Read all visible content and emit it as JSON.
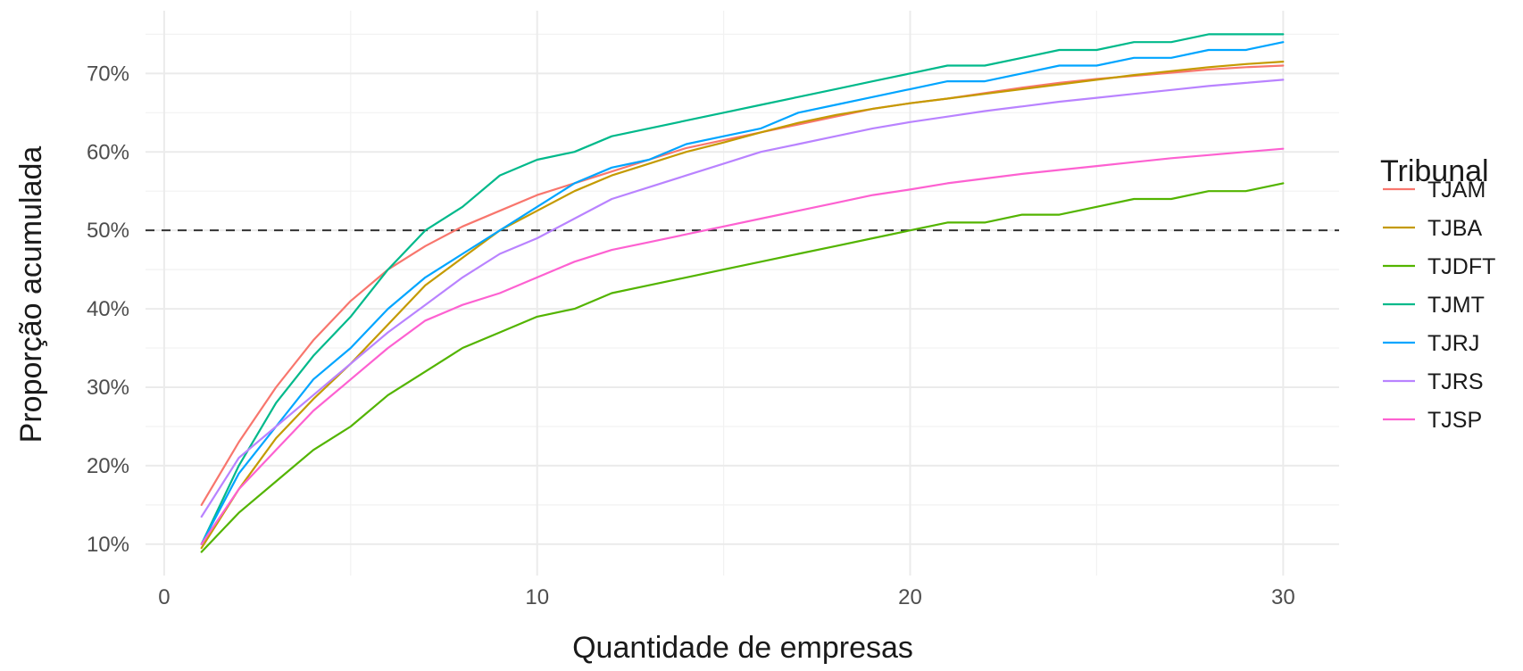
{
  "chart_data": {
    "type": "line",
    "title": "",
    "xlabel": "Quantidade de empresas",
    "ylabel": "Proporção acumulada",
    "xlim": [
      -0.5,
      31.5
    ],
    "ylim": [
      0.06,
      0.78
    ],
    "x_ticks": [
      0,
      10,
      20,
      30
    ],
    "x_tick_labels": [
      "0",
      "10",
      "20",
      "30"
    ],
    "y_ticks": [
      0.1,
      0.2,
      0.3,
      0.4,
      0.5,
      0.6,
      0.7
    ],
    "y_tick_labels": [
      "10%",
      "20%",
      "30%",
      "40%",
      "50%",
      "60%",
      "70%"
    ],
    "grid": true,
    "reference_line": {
      "y": 0.5,
      "style": "dashed",
      "color": "#333333"
    },
    "legend": {
      "title": "Tribunal",
      "position": "right"
    },
    "series": [
      {
        "name": "TJAM",
        "color": "#F8766D",
        "x": [
          1,
          2,
          3,
          4,
          5,
          6,
          7,
          8,
          9,
          10,
          11,
          12,
          13,
          14,
          15,
          16,
          17,
          18,
          19,
          20,
          21,
          22,
          23,
          24,
          25,
          26,
          27,
          28,
          29,
          30
        ],
        "values": [
          0.15,
          0.23,
          0.3,
          0.36,
          0.41,
          0.45,
          0.48,
          0.505,
          0.525,
          0.545,
          0.56,
          0.575,
          0.59,
          0.605,
          0.615,
          0.625,
          0.635,
          0.645,
          0.655,
          0.662,
          0.668,
          0.675,
          0.682,
          0.688,
          0.693,
          0.697,
          0.701,
          0.705,
          0.708,
          0.71
        ]
      },
      {
        "name": "TJBA",
        "color": "#C49A00",
        "x": [
          1,
          2,
          3,
          4,
          5,
          6,
          7,
          8,
          9,
          10,
          11,
          12,
          13,
          14,
          15,
          16,
          17,
          18,
          19,
          20,
          21,
          22,
          23,
          24,
          25,
          26,
          27,
          28,
          29,
          30
        ],
        "values": [
          0.095,
          0.17,
          0.235,
          0.285,
          0.33,
          0.38,
          0.43,
          0.465,
          0.5,
          0.525,
          0.55,
          0.57,
          0.585,
          0.6,
          0.612,
          0.625,
          0.637,
          0.647,
          0.655,
          0.662,
          0.668,
          0.674,
          0.68,
          0.686,
          0.692,
          0.698,
          0.703,
          0.708,
          0.712,
          0.715
        ]
      },
      {
        "name": "TJDFT",
        "color": "#53B400",
        "x": [
          1,
          2,
          3,
          4,
          5,
          6,
          7,
          8,
          9,
          10,
          11,
          12,
          13,
          14,
          15,
          16,
          17,
          18,
          19,
          20,
          21,
          22,
          23,
          24,
          25,
          26,
          27,
          28,
          29,
          30
        ],
        "values": [
          0.09,
          0.14,
          0.18,
          0.22,
          0.25,
          0.29,
          0.32,
          0.35,
          0.37,
          0.39,
          0.4,
          0.42,
          0.43,
          0.44,
          0.45,
          0.46,
          0.47,
          0.48,
          0.49,
          0.5,
          0.51,
          0.51,
          0.52,
          0.52,
          0.53,
          0.54,
          0.54,
          0.55,
          0.55,
          0.56
        ]
      },
      {
        "name": "TJMT",
        "color": "#00B98B",
        "x": [
          1,
          2,
          3,
          4,
          5,
          6,
          7,
          8,
          9,
          10,
          11,
          12,
          13,
          14,
          15,
          16,
          17,
          18,
          19,
          20,
          21,
          22,
          23,
          24,
          25,
          26,
          27,
          28,
          29,
          30
        ],
        "values": [
          0.1,
          0.2,
          0.28,
          0.34,
          0.39,
          0.45,
          0.5,
          0.53,
          0.57,
          0.59,
          0.6,
          0.62,
          0.63,
          0.64,
          0.65,
          0.66,
          0.67,
          0.68,
          0.69,
          0.7,
          0.71,
          0.71,
          0.72,
          0.73,
          0.73,
          0.74,
          0.74,
          0.75,
          0.75,
          0.75
        ]
      },
      {
        "name": "TJRJ",
        "color": "#00A5FF",
        "x": [
          1,
          2,
          3,
          4,
          5,
          6,
          7,
          8,
          9,
          10,
          11,
          12,
          13,
          14,
          15,
          16,
          17,
          18,
          19,
          20,
          21,
          22,
          23,
          24,
          25,
          26,
          27,
          28,
          29,
          30
        ],
        "values": [
          0.1,
          0.19,
          0.25,
          0.31,
          0.35,
          0.4,
          0.44,
          0.47,
          0.5,
          0.53,
          0.56,
          0.58,
          0.59,
          0.61,
          0.62,
          0.63,
          0.65,
          0.66,
          0.67,
          0.68,
          0.69,
          0.69,
          0.7,
          0.71,
          0.71,
          0.72,
          0.72,
          0.73,
          0.73,
          0.74
        ]
      },
      {
        "name": "TJRS",
        "color": "#B983FF",
        "x": [
          1,
          2,
          3,
          4,
          5,
          6,
          7,
          8,
          9,
          10,
          11,
          12,
          13,
          14,
          15,
          16,
          17,
          18,
          19,
          20,
          21,
          22,
          23,
          24,
          25,
          26,
          27,
          28,
          29,
          30
        ],
        "values": [
          0.135,
          0.21,
          0.25,
          0.29,
          0.33,
          0.37,
          0.405,
          0.44,
          0.47,
          0.49,
          0.515,
          0.54,
          0.555,
          0.57,
          0.585,
          0.6,
          0.61,
          0.62,
          0.63,
          0.638,
          0.645,
          0.652,
          0.658,
          0.664,
          0.669,
          0.674,
          0.679,
          0.684,
          0.688,
          0.692
        ]
      },
      {
        "name": "TJSP",
        "color": "#FD61D1",
        "x": [
          1,
          2,
          3,
          4,
          5,
          6,
          7,
          8,
          9,
          10,
          11,
          12,
          13,
          14,
          15,
          16,
          17,
          18,
          19,
          20,
          21,
          22,
          23,
          24,
          25,
          26,
          27,
          28,
          29,
          30
        ],
        "values": [
          0.1,
          0.17,
          0.22,
          0.27,
          0.31,
          0.35,
          0.385,
          0.405,
          0.42,
          0.44,
          0.46,
          0.475,
          0.485,
          0.495,
          0.505,
          0.515,
          0.525,
          0.535,
          0.545,
          0.552,
          0.56,
          0.566,
          0.572,
          0.577,
          0.582,
          0.587,
          0.592,
          0.596,
          0.6,
          0.604
        ]
      }
    ]
  }
}
